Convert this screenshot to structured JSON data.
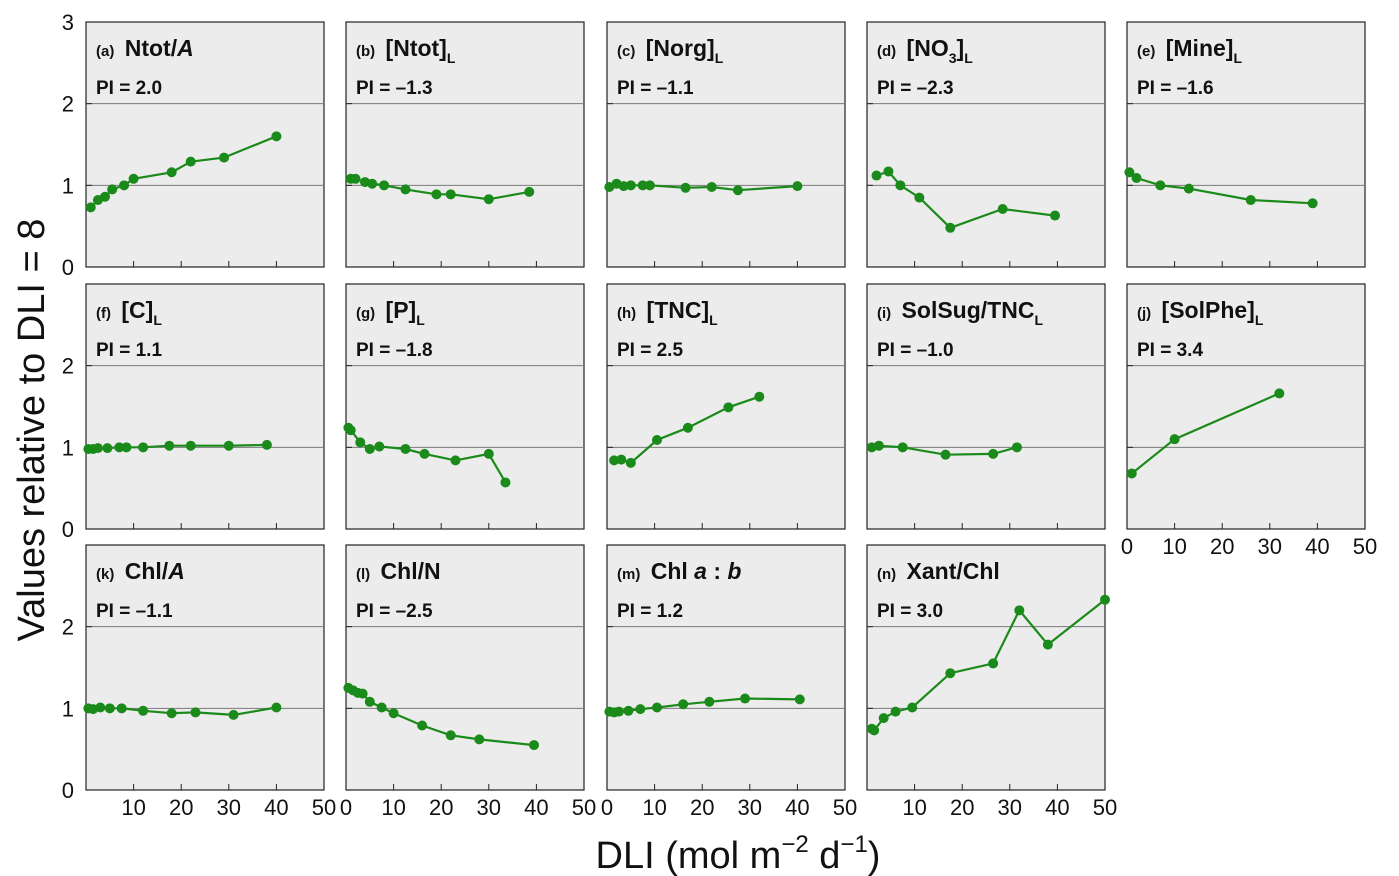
{
  "figure": {
    "ylabel": "Values relative to DLI = 8",
    "xlabel_main": "DLI (mol m",
    "xlabel_exp1": "−2",
    "xlabel_mid": " d",
    "xlabel_exp2": "−1",
    "xlabel_end": ")"
  },
  "colors": {
    "series": "#1a8a1a",
    "panel_bg": "#ececec",
    "gridline": "#7a7a7a"
  },
  "chart_data": [
    {
      "type": "line",
      "letter": "(a)",
      "title": "Ntot/",
      "title_italic": "A",
      "title_sub": "",
      "pi": "PI = 2.0",
      "x": [
        1,
        2.5,
        4,
        5.5,
        8,
        10,
        18,
        22,
        29,
        40
      ],
      "y": [
        0.73,
        0.82,
        0.86,
        0.95,
        1.0,
        1.08,
        1.16,
        1.29,
        1.34,
        1.6
      ],
      "xlim": [
        0,
        50
      ],
      "ylim": [
        0,
        3
      ]
    },
    {
      "type": "line",
      "letter": "(b)",
      "title": "[Ntot]",
      "title_italic": "",
      "title_sub": "L",
      "pi": "PI = –1.3",
      "x": [
        1,
        2,
        4,
        5.5,
        8,
        12.5,
        19,
        22,
        30,
        38.5
      ],
      "y": [
        1.08,
        1.08,
        1.04,
        1.02,
        1.0,
        0.95,
        0.89,
        0.89,
        0.83,
        0.92
      ],
      "xlim": [
        0,
        50
      ],
      "ylim": [
        0,
        3
      ]
    },
    {
      "type": "line",
      "letter": "(c)",
      "title": "[Norg]",
      "title_italic": "",
      "title_sub": "L",
      "pi": "PI = –1.1",
      "x": [
        0.5,
        2,
        3.5,
        5,
        7.5,
        9,
        16.5,
        22,
        27.5,
        40
      ],
      "y": [
        0.98,
        1.02,
        0.99,
        1.0,
        1.0,
        1.0,
        0.97,
        0.98,
        0.94,
        0.99
      ],
      "xlim": [
        0,
        50
      ],
      "ylim": [
        0,
        3
      ]
    },
    {
      "type": "line",
      "letter": "(d)",
      "title": "[NO",
      "title_italic": "",
      "title_sub": "3",
      "title_after": "]",
      "title_sub2": "L",
      "pi": "PI = –2.3",
      "x": [
        2,
        4.5,
        7,
        11,
        17.5,
        28.5,
        39.5
      ],
      "y": [
        1.12,
        1.17,
        1.0,
        0.85,
        0.48,
        0.71,
        0.63
      ],
      "xlim": [
        0,
        50
      ],
      "ylim": [
        0,
        3
      ]
    },
    {
      "type": "line",
      "letter": "(e)",
      "title": "[Mine]",
      "title_italic": "",
      "title_sub": "L",
      "pi": "PI = –1.6",
      "x": [
        0.5,
        2,
        7,
        13,
        26,
        39
      ],
      "y": [
        1.16,
        1.09,
        1.0,
        0.96,
        0.82,
        0.78
      ],
      "xlim": [
        0,
        50
      ],
      "ylim": [
        0,
        3
      ]
    },
    {
      "type": "line",
      "letter": "(f)",
      "title": "[C]",
      "title_italic": "",
      "title_sub": "L",
      "pi": "PI = 1.1",
      "x": [
        0.5,
        1.5,
        2.5,
        4.5,
        7,
        8.5,
        12,
        17.5,
        22,
        30,
        38
      ],
      "y": [
        0.98,
        0.98,
        0.99,
        0.99,
        1.0,
        1.0,
        1.0,
        1.02,
        1.02,
        1.02,
        1.03
      ],
      "xlim": [
        0,
        50
      ],
      "ylim": [
        0,
        3
      ]
    },
    {
      "type": "line",
      "letter": "(g)",
      "title": "[P]",
      "title_italic": "",
      "title_sub": "L",
      "pi": "PI = –1.8",
      "x": [
        0.5,
        1,
        3,
        5,
        7,
        12.5,
        16.5,
        23,
        30,
        33.5
      ],
      "y": [
        1.24,
        1.21,
        1.06,
        0.98,
        1.01,
        0.98,
        0.92,
        0.84,
        0.92,
        0.57
      ],
      "xlim": [
        0,
        50
      ],
      "ylim": [
        0,
        3
      ]
    },
    {
      "type": "line",
      "letter": "(h)",
      "title": "[TNC]",
      "title_italic": "",
      "title_sub": "L",
      "pi": "PI = 2.5",
      "x": [
        1.5,
        3,
        5,
        10.5,
        17,
        25.5,
        32
      ],
      "y": [
        0.84,
        0.85,
        0.81,
        1.09,
        1.24,
        1.49,
        1.62
      ],
      "xlim": [
        0,
        50
      ],
      "ylim": [
        0,
        3
      ]
    },
    {
      "type": "line",
      "letter": "(i)",
      "title": "SolSug/TNC",
      "title_italic": "",
      "title_sub": "L",
      "pi": "PI = –1.0",
      "x": [
        1,
        2.5,
        7.5,
        16.5,
        26.5,
        31.5
      ],
      "y": [
        1.0,
        1.02,
        1.0,
        0.91,
        0.92,
        1.0
      ],
      "xlim": [
        0,
        50
      ],
      "ylim": [
        0,
        3
      ]
    },
    {
      "type": "line",
      "letter": "(j)",
      "title": "[SolPhe]",
      "title_italic": "",
      "title_sub": "L",
      "pi": "PI = 3.4",
      "x": [
        1,
        10,
        32
      ],
      "y": [
        0.68,
        1.1,
        1.66
      ],
      "xlim": [
        0,
        50
      ],
      "ylim": [
        0,
        3
      ]
    },
    {
      "type": "line",
      "letter": "(k)",
      "title": "Chl/",
      "title_italic": "A",
      "title_sub": "",
      "pi": "PI = –1.1",
      "x": [
        0.5,
        1.5,
        3,
        5,
        7.5,
        12,
        18,
        23,
        31,
        40
      ],
      "y": [
        1.0,
        0.99,
        1.01,
        1.0,
        1.0,
        0.97,
        0.94,
        0.95,
        0.92,
        1.01
      ],
      "xlim": [
        0,
        50
      ],
      "ylim": [
        0,
        3
      ]
    },
    {
      "type": "line",
      "letter": "(l)",
      "title": "Chl/N",
      "title_italic": "",
      "title_sub": "",
      "pi": "PI = –2.5",
      "x": [
        0.5,
        1.5,
        2.5,
        3.5,
        5,
        7.5,
        10,
        16,
        22,
        28,
        39.5
      ],
      "y": [
        1.25,
        1.22,
        1.19,
        1.18,
        1.08,
        1.01,
        0.94,
        0.79,
        0.67,
        0.62,
        0.55
      ],
      "xlim": [
        0,
        50
      ],
      "ylim": [
        0,
        3
      ]
    },
    {
      "type": "line",
      "letter": "(m)",
      "title": "Chl ",
      "title_italic": "a",
      "title_mid": " : ",
      "title_italic2": "b",
      "title_sub": "",
      "pi": "PI = 1.2",
      "x": [
        0.5,
        1.5,
        2.5,
        4.5,
        7,
        10.5,
        16,
        21.5,
        29,
        40.5
      ],
      "y": [
        0.96,
        0.95,
        0.96,
        0.97,
        0.99,
        1.01,
        1.05,
        1.08,
        1.12,
        1.11
      ],
      "xlim": [
        0,
        50
      ],
      "ylim": [
        0,
        3
      ]
    },
    {
      "type": "line",
      "letter": "(n)",
      "title": "Xant/Chl",
      "title_italic": "",
      "title_sub": "",
      "pi": "PI = 3.0",
      "x": [
        1,
        1.5,
        3.5,
        6,
        9.5,
        17.5,
        26.5,
        32,
        38,
        50
      ],
      "y": [
        0.75,
        0.73,
        0.88,
        0.96,
        1.01,
        1.43,
        1.55,
        2.2,
        1.78,
        2.33
      ],
      "xlim": [
        0,
        50
      ],
      "ylim": [
        0,
        3
      ]
    }
  ],
  "axes": {
    "y_ticks": [
      "0",
      "1",
      "2",
      "3"
    ],
    "x_ticks_first": [
      "10",
      "20",
      "30",
      "40",
      "50"
    ],
    "x_ticks_full": [
      "0",
      "10",
      "20",
      "30",
      "40",
      "50"
    ]
  }
}
